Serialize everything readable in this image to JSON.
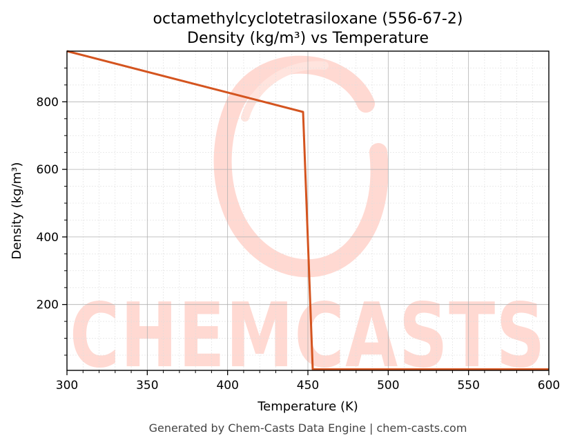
{
  "chart_data": {
    "type": "line",
    "title": "octamethylcyclotetrasiloxane (556-67-2)",
    "subtitle": "Density (kg/m³) vs Temperature",
    "xlabel": "Temperature (K)",
    "ylabel": "Density (kg/m³)",
    "xlim": [
      300,
      600
    ],
    "ylim": [
      5,
      950
    ],
    "xticks": [
      300,
      350,
      400,
      450,
      500,
      550,
      600
    ],
    "yticks": [
      200,
      400,
      600,
      800
    ],
    "grid": true,
    "legend": "none",
    "series": [
      {
        "color": "#d4541f",
        "x": [
          300,
          447,
          453,
          600
        ],
        "y": [
          950,
          770,
          8,
          8
        ]
      }
    ]
  },
  "footer": "Generated by Chem-Casts Data Engine | chem-casts.com",
  "watermark": "CHEMCASTS",
  "colors": {
    "line": "#d4541f",
    "watermark": "#ffd9d2",
    "grid_major": "#b0b0b0",
    "grid_minor": "#dddddd"
  }
}
